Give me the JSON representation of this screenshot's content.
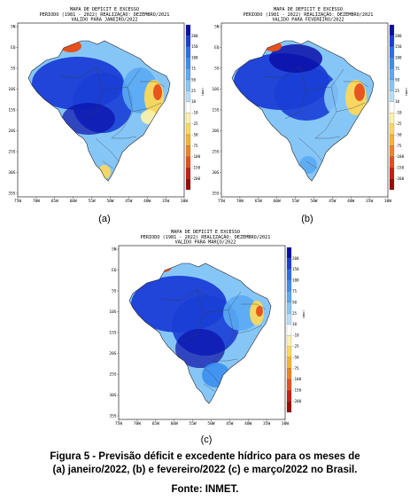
{
  "maps": [
    {
      "id": "a",
      "title_lines": [
        "MAPA DE DEFICIT E EXCESSO",
        "PERIODO (1981 - 2022) REALIZAÇÃO: DEZEMBRO/2021",
        "VALIDO PARA JANEIRO/2022"
      ],
      "label": "(a)"
    },
    {
      "id": "b",
      "title_lines": [
        "MAPA DE DEFICIT E EXCESSO",
        "PERIODO (1981 - 2022) REALIZAÇÃO: DEZEMBRO/2021",
        "VALIDO PARA FEVEREIRO/2022"
      ],
      "label": "(b)"
    },
    {
      "id": "c",
      "title_lines": [
        "MAPA DE DEFICIT E EXCESSO",
        "PERIODO (1981 - 2022) REALIZAÇÃO: DEZEMBRO/2021",
        "VALIDO PARA MARÇO/2022"
      ],
      "label": "(c)"
    }
  ],
  "axes": {
    "lon_ticks": [
      "75W",
      "70W",
      "65W",
      "60W",
      "55W",
      "50W",
      "45W",
      "40W",
      "35W",
      "30W"
    ],
    "lat_ticks": [
      "5N",
      "EQ",
      "5S",
      "10S",
      "15S",
      "20S",
      "25S",
      "30S",
      "35S"
    ]
  },
  "colorbar": {
    "unit": "(mm)",
    "labels": [
      "200",
      "150",
      "100",
      "75",
      "50",
      "25",
      "10",
      "-10",
      "-25",
      "-50",
      "-75",
      "-100",
      "-150",
      "-200"
    ],
    "colors": [
      "#0a0fa8",
      "#1a3ed6",
      "#2a6fe8",
      "#3b8ef0",
      "#5aaaf3",
      "#86c6f7",
      "#b8def9",
      "#ffffff",
      "#fff2a8",
      "#fdd85a",
      "#f9b233",
      "#f28322",
      "#e5501b",
      "#c81e12",
      "#9a0b08"
    ]
  },
  "caption": {
    "line1": "Figura 5 - Previsão déficit e excedente hídrico para os meses de",
    "line2": "(a) janeiro/2022, (b) e fevereiro/2022 (c) e março/2022 no Brasil."
  },
  "source": "Fonte: INMET."
}
